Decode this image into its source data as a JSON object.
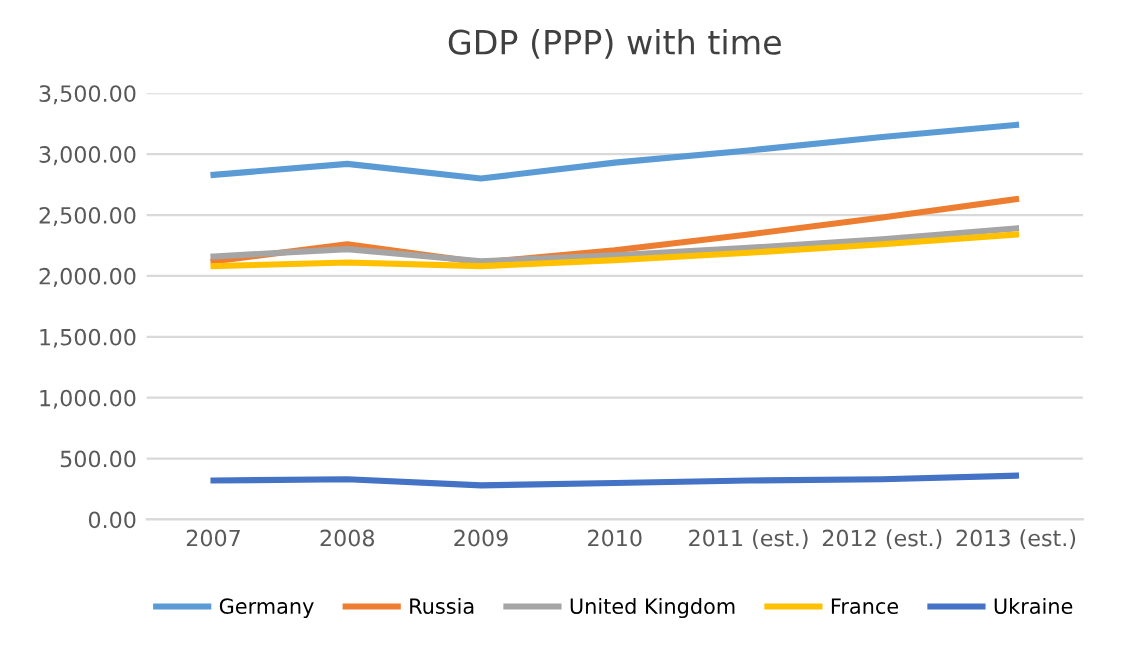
{
  "chart_data": {
    "type": "line",
    "title": "GDP (PPP) with time",
    "categories": [
      "2007",
      "2008",
      "2009",
      "2010",
      "2011 (est.)",
      "2012 (est.)",
      "2013 (est.)"
    ],
    "series": [
      {
        "name": "Germany",
        "color": "#5b9bd5",
        "values": [
          2830,
          2920,
          2800,
          2930,
          3030,
          3140,
          3240
        ]
      },
      {
        "name": "Russia",
        "color": "#ed7d31",
        "values": [
          2120,
          2260,
          2110,
          2210,
          2340,
          2480,
          2630
        ]
      },
      {
        "name": "United Kingdom",
        "color": "#a5a5a5",
        "values": [
          2160,
          2220,
          2120,
          2170,
          2230,
          2300,
          2390
        ]
      },
      {
        "name": "France",
        "color": "#ffc000",
        "values": [
          2080,
          2110,
          2080,
          2130,
          2190,
          2260,
          2340
        ]
      },
      {
        "name": "Ukraine",
        "color": "#4472c4",
        "values": [
          320,
          330,
          280,
          300,
          320,
          330,
          360
        ]
      }
    ],
    "ylim": [
      0,
      3500
    ],
    "yticks": [
      {
        "value": 0,
        "label": "0.00"
      },
      {
        "value": 500,
        "label": "500.00"
      },
      {
        "value": 1000,
        "label": "1,000.00"
      },
      {
        "value": 1500,
        "label": "1,500.00"
      },
      {
        "value": 2000,
        "label": "2,000.00"
      },
      {
        "value": 2500,
        "label": "2,500.00"
      },
      {
        "value": 3000,
        "label": "3,000.00"
      },
      {
        "value": 3500,
        "label": "3,500.00"
      }
    ],
    "grid": "y",
    "legend": "bottom",
    "marker": "none",
    "line_style": "solid"
  }
}
